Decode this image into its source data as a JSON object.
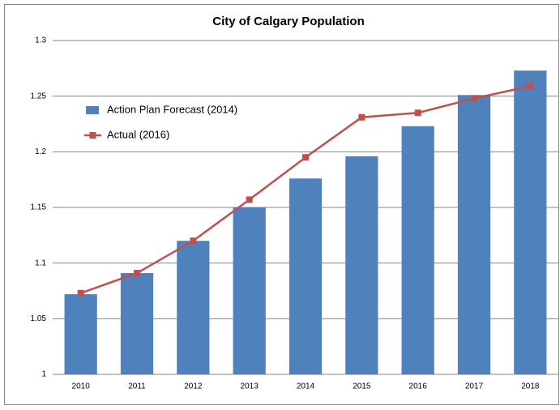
{
  "chart_data": {
    "type": "combo",
    "title": "City of Calgary Population",
    "categories": [
      "2010",
      "2011",
      "2012",
      "2013",
      "2014",
      "2015",
      "2016",
      "2017",
      "2018"
    ],
    "series": [
      {
        "name": "Action Plan Forecast (2014)",
        "type": "bar",
        "color": "#4f81bd",
        "values": [
          1.072,
          1.091,
          1.12,
          1.15,
          1.176,
          1.196,
          1.223,
          1.251,
          1.273
        ]
      },
      {
        "name": "Actual (2016)",
        "type": "line",
        "color": "#c0504d",
        "values": [
          1.073,
          1.091,
          1.12,
          1.157,
          1.195,
          1.231,
          1.235,
          1.248,
          1.259
        ]
      }
    ],
    "ylim": [
      1,
      1.3
    ],
    "yticks": [
      1,
      1.05,
      1.1,
      1.15,
      1.2,
      1.25,
      1.3
    ],
    "grid": true,
    "legend": "upper left"
  }
}
